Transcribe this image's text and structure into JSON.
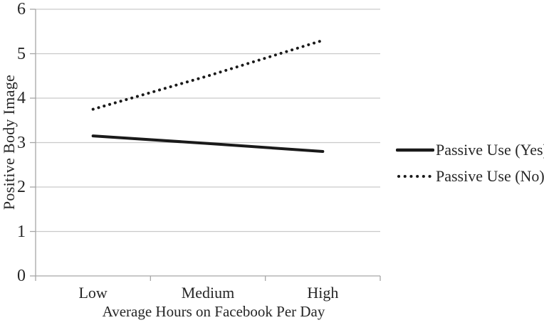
{
  "chart_data": {
    "type": "line",
    "title": "",
    "categories": [
      "Low",
      "Medium",
      "High"
    ],
    "series": [
      {
        "name": "Passive Use (Yes)",
        "line_style": "solid",
        "values": [
          3.15,
          2.98,
          2.8
        ]
      },
      {
        "name": "Passive Use (No)",
        "line_style": "dotted",
        "values": [
          3.75,
          4.5,
          5.3
        ]
      }
    ],
    "xlabel": "Average Hours on Facebook Per Day",
    "ylabel": "Positive Body Image",
    "ylim": [
      0,
      6
    ],
    "yticks": [
      0,
      1,
      2,
      3,
      4,
      5,
      6
    ],
    "grid": true,
    "legend_position": "right",
    "line_color": "#1a1a1a"
  },
  "style_colors": {
    "grid": "#c9c9c9",
    "axis": "#a6a6a6",
    "text": "#262626",
    "background": "#ffffff"
  }
}
